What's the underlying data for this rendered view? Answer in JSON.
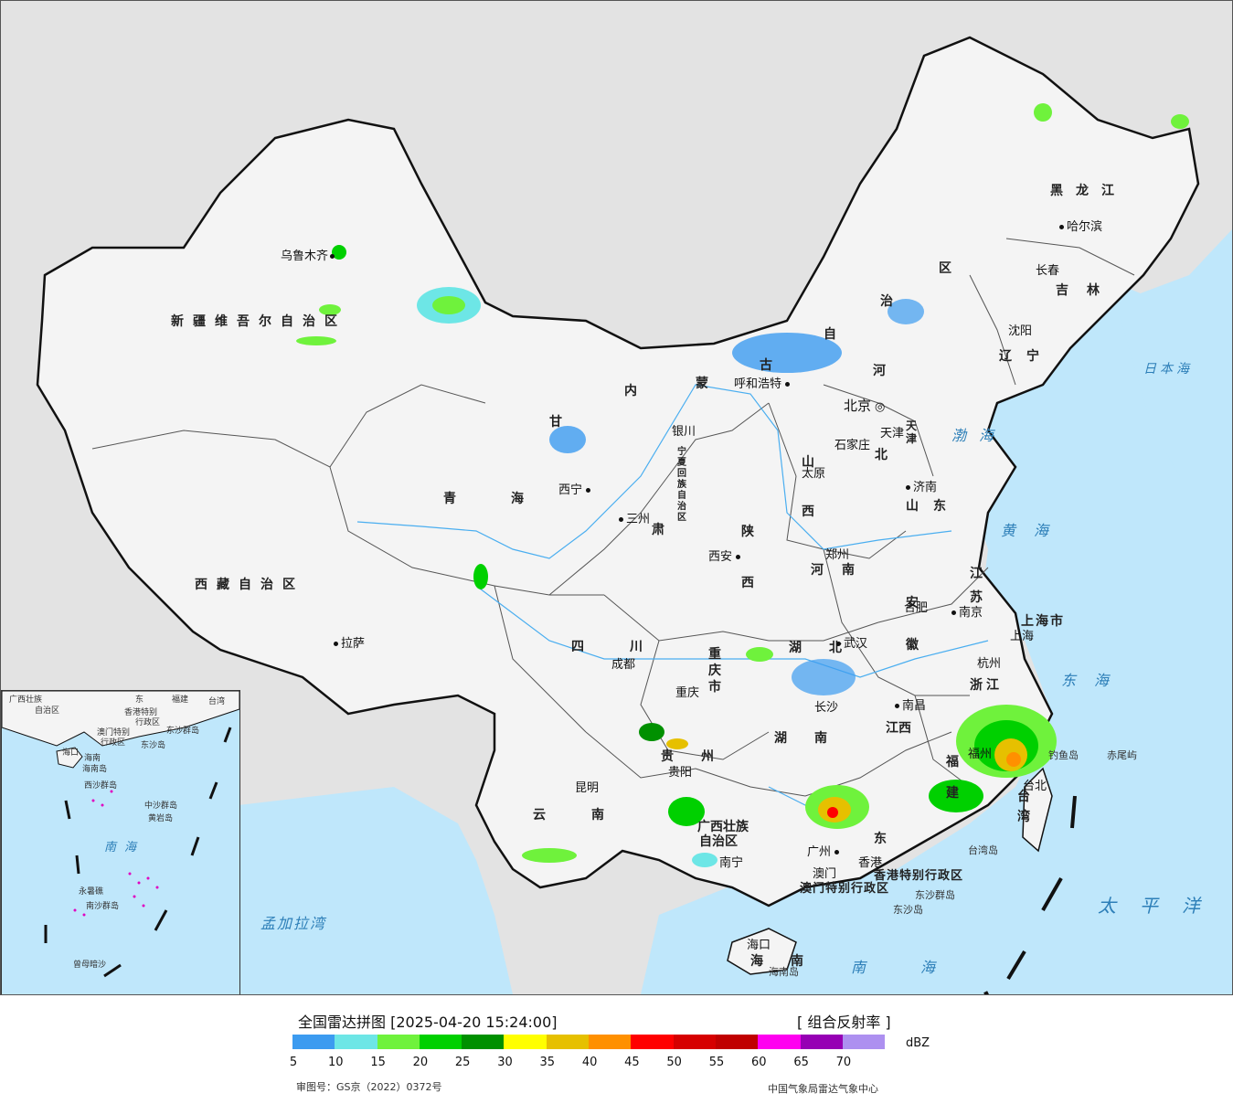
{
  "colors": {
    "sea": "#bfe7fb",
    "land_outside": "#e3e3e3",
    "china_land": "#f4f4f4",
    "border": "#111111"
  },
  "map": {
    "capital_label": "北京",
    "capital_sub": "北京市",
    "provinces": {
      "xinjiang": "新疆维吾尔自治区",
      "xizang": "西藏自治区",
      "qinghai": "青海",
      "gansu": "甘",
      "sichuan": "四川",
      "yunnan": "云南",
      "guizhou": "贵州",
      "guangxi_1": "广西壮族",
      "guangxi_2": "自治区",
      "guangdong": "东",
      "hainan": "海南",
      "hunan": "湖南",
      "hubei": "湖北",
      "jiangxi": "江西",
      "fujian": "福建",
      "zhejiang": "浙江",
      "jiangsu": "江苏",
      "anhui": "安徽",
      "henan": "河南",
      "shandong": "山东",
      "shanxi": "山西",
      "shaanxi": "陕西",
      "hebei": "北",
      "hebei_he": "河",
      "neimenggu_nei": "内",
      "neimenggu_meng": "蒙",
      "neimenggu_gu": "古",
      "neimenggu_zi": "自",
      "neimenggu_zhi": "治",
      "neimenggu_qu": "区",
      "liaoning": "辽宁",
      "jilin": "吉林",
      "heilongjiang": "黑龙江",
      "chongqing": "重庆市",
      "ningxia": "宁夏回族自治区",
      "gansu_su": "肃",
      "shanghai": "上海市",
      "taiwan": "台湾",
      "tianjin": "天津",
      "xianggang": "香港特别行政区",
      "aomen": "澳门特别行政区"
    },
    "cities": {
      "urumqi": "乌鲁木齐",
      "lhasa": "拉萨",
      "xining": "西宁",
      "lanzhou": "三州",
      "yinchuan": "银川",
      "huhehaote": "呼和浩特",
      "beijing_city": "北京",
      "tianjin_city": "天津",
      "shijiazhuang": "石家庄",
      "taiyuan": "太原",
      "jinan": "济南",
      "zhengzhou": "郑州",
      "xian": "西安",
      "chengdu": "成都",
      "chongqing_city": "重庆",
      "wuhan": "武汉",
      "hefei": "合肥",
      "nanjing": "南京",
      "shanghai_city": "上海",
      "hangzhou": "杭州",
      "nanchang": "南昌",
      "changsha": "长沙",
      "guiyang": "贵阳",
      "kunming": "昆明",
      "nanning": "南宁",
      "guangzhou": "广州",
      "xianggang_city": "香港",
      "aomen_city": "澳门",
      "fuzhou": "福州",
      "taibei": "台北",
      "haikou": "海口",
      "shenyang": "沈阳",
      "changchun": "长春",
      "haerbin": "哈尔滨"
    },
    "seas": {
      "japan_sea": "日本海",
      "yellow_sea": "黄海",
      "east_sea": "东海",
      "bohai": "渤海",
      "pacific": "太平洋",
      "south_sea": "南海",
      "bengal": "孟加拉湾"
    },
    "islands": {
      "diaoyu": "钓鱼岛",
      "chiwei": "赤尾屿",
      "taiwan_island": "台湾岛",
      "hainan_island": "海南岛",
      "dongsha_qundao": "东沙群岛",
      "dongsha_dao": "东沙岛"
    },
    "inset": {
      "labels": [
        "广西壮族",
        "自治区",
        "东",
        "福建",
        "台湾",
        "香港特别",
        "行政区",
        "东沙群岛",
        "澳门特别",
        "行政区",
        "东沙岛",
        "海口",
        "海南",
        "海南岛",
        "西沙群岛",
        "中沙群岛",
        "黄岩岛",
        "南",
        "海",
        "永暑礁",
        "南沙群岛",
        "曾母暗沙"
      ]
    }
  },
  "legend": {
    "title": "全国雷达拼图 [2025-04-20 15:24:00]",
    "product": "[ 组合反射率 ]",
    "unit": "dBZ",
    "ticks": [
      "5",
      "10",
      "15",
      "20",
      "25",
      "30",
      "35",
      "40",
      "45",
      "50",
      "55",
      "60",
      "65",
      "70"
    ],
    "colors": [
      "#3c9bf0",
      "#6de6e6",
      "#6ff23c",
      "#00d000",
      "#009000",
      "#ffff00",
      "#e6c000",
      "#ff9000",
      "#ff0000",
      "#d60000",
      "#c00000",
      "#ff00f0",
      "#9600b4",
      "#ad90f0"
    ],
    "review_no": "审图号：GS京（2022）0372号",
    "agency": "中国气象局雷达气象中心"
  }
}
